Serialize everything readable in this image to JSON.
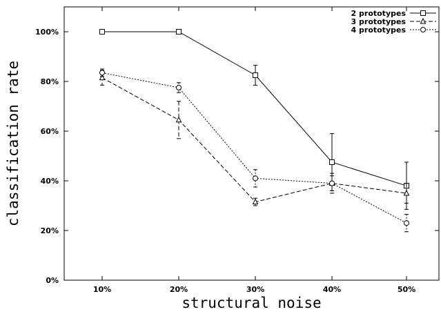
{
  "chart_data": {
    "type": "line",
    "xlabel": "structural noise",
    "ylabel": "classification rate",
    "categories": [
      "10%",
      "20%",
      "30%",
      "40%",
      "50%"
    ],
    "yticks": [
      "0%",
      "20%",
      "40%",
      "60%",
      "80%",
      "100%"
    ],
    "ylim": [
      0,
      100
    ],
    "grid": false,
    "legend_position": "top-right",
    "series": [
      {
        "name": "2 prototypes",
        "marker": "square",
        "dash": "solid",
        "values": [
          100,
          100,
          82.5,
          47.5,
          38
        ],
        "err": [
          0,
          0,
          4,
          11.5,
          9.5
        ]
      },
      {
        "name": "3 prototypes",
        "marker": "triangle",
        "dash": "dashed",
        "values": [
          81.5,
          64.5,
          31.5,
          39,
          35
        ],
        "err": [
          3,
          7.5,
          1.5,
          3,
          4
        ]
      },
      {
        "name": "4 prototypes",
        "marker": "circle",
        "dash": "dotted",
        "values": [
          83.5,
          77.5,
          41,
          39,
          23
        ],
        "err": [
          1.5,
          2,
          3.5,
          4,
          3.5
        ]
      }
    ]
  }
}
